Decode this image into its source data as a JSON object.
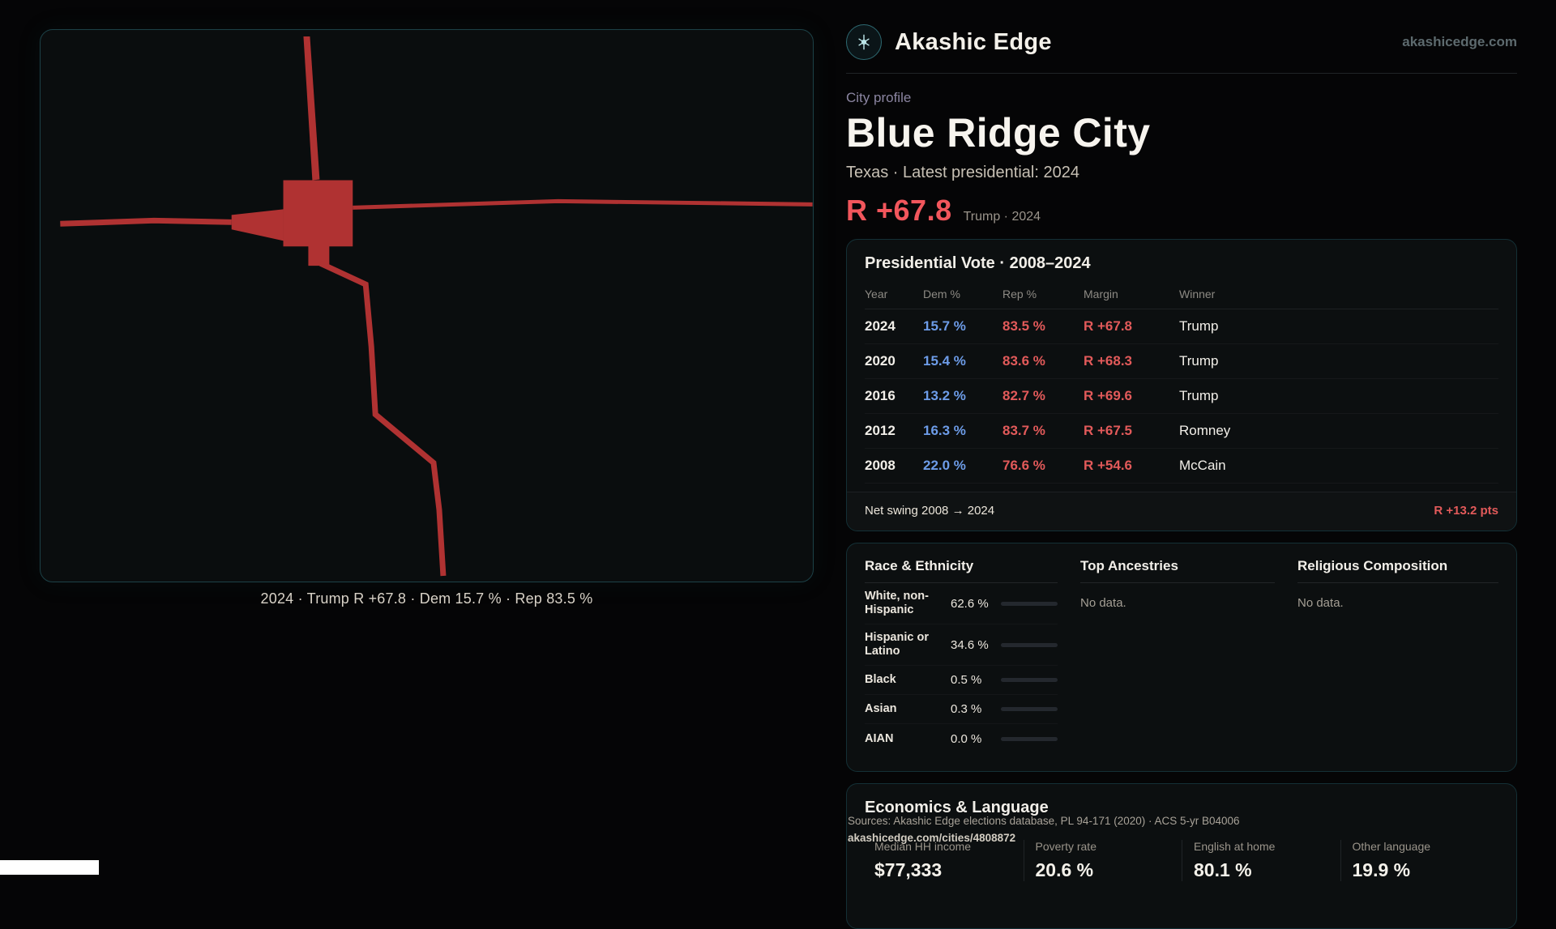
{
  "brand": {
    "name": "Akashic Edge",
    "domain": "akashicedge.com"
  },
  "profile": {
    "eyebrow": "City profile",
    "city": "Blue Ridge City",
    "subtitle": "Texas · Latest presidential: 2024",
    "headline_margin": "R +67.8",
    "headline_note": "Trump · 2024"
  },
  "map": {
    "caption": "2024 · Trump R +67.8 · Dem 15.7 % · Rep 83.5 %"
  },
  "presidential": {
    "title": "Presidential Vote · 2008–2024",
    "columns": [
      "Year",
      "Dem %",
      "Rep %",
      "Margin",
      "Winner"
    ],
    "rows": [
      {
        "year": "2024",
        "dem": "15.7 %",
        "rep": "83.5 %",
        "margin": "R +67.8",
        "winner": "Trump"
      },
      {
        "year": "2020",
        "dem": "15.4 %",
        "rep": "83.6 %",
        "margin": "R +68.3",
        "winner": "Trump"
      },
      {
        "year": "2016",
        "dem": "13.2 %",
        "rep": "82.7 %",
        "margin": "R +69.6",
        "winner": "Trump"
      },
      {
        "year": "2012",
        "dem": "16.3 %",
        "rep": "83.7 %",
        "margin": "R +67.5",
        "winner": "Romney"
      },
      {
        "year": "2008",
        "dem": "22.0 %",
        "rep": "76.6 %",
        "margin": "R +54.6",
        "winner": "McCain"
      }
    ],
    "swing_label": "Net swing 2008 → 2024",
    "swing_value": "R +13.2 pts"
  },
  "demographics": {
    "race_title": "Race & Ethnicity",
    "ancestry_title": "Top Ancestries",
    "religion_title": "Religious Composition",
    "ancestry_empty": "No data.",
    "religion_empty": "No data.",
    "races": [
      {
        "label": "White, non-Hispanic",
        "value": "62.6 %",
        "pct": 62.6,
        "bar_color": "#98a2b3"
      },
      {
        "label": "Hispanic or Latino",
        "value": "34.6 %",
        "pct": 34.6,
        "bar_color": "#d9993c"
      },
      {
        "label": "Black",
        "value": "0.5 %",
        "pct": 0.5,
        "bar_color": "#98a2b3"
      },
      {
        "label": "Asian",
        "value": "0.3 %",
        "pct": 0.3,
        "bar_color": "#98a2b3"
      },
      {
        "label": "AIAN",
        "value": "0.0 %",
        "pct": 0,
        "bar_color": "#98a2b3"
      }
    ]
  },
  "economics": {
    "title": "Economics & Language",
    "stats": [
      {
        "label": "Median HH income",
        "value": "$77,333"
      },
      {
        "label": "Poverty rate",
        "value": "20.6 %"
      },
      {
        "label": "English at home",
        "value": "80.1 %"
      },
      {
        "label": "Other language",
        "value": "19.9 %"
      }
    ]
  },
  "footer": {
    "sources": "Sources: Akashic Edge elections database, PL 94-171 (2020) · ACS 5-yr B04006",
    "permalink": "akashicedge.com/cities/4808872"
  },
  "colors": {
    "accent_red": "#f2565c",
    "dem_blue": "#6d9ce8",
    "rep_red": "#e25a5a",
    "panel_border": "#143036",
    "map_border": "#1c4147",
    "map_shape": "#b03232",
    "bar_orange": "#d9993c",
    "bar_gray": "#98a2b3"
  }
}
